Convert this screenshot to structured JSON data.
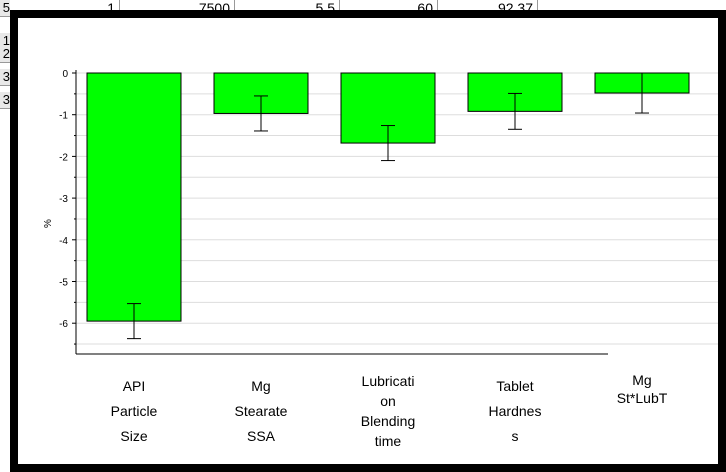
{
  "sheet": {
    "top_row": [
      "5",
      "1",
      "7500",
      "5.5",
      "60",
      "92.37"
    ],
    "row_headers": [
      "1",
      "2",
      "3",
      "3"
    ]
  },
  "chart_data": {
    "type": "bar",
    "categories": [
      "API Particle Size",
      "Mg Stearate SSA",
      "Lubrication Blending time",
      "Tablet Hardness",
      "Mg St*LubT"
    ],
    "category_lines": [
      [
        "API",
        "Particle",
        "Size"
      ],
      [
        "Mg",
        "Stearate",
        "SSA"
      ],
      [
        "Lubricati",
        "on",
        "Blending",
        "time"
      ],
      [
        "Tablet",
        "Hardnes",
        "s"
      ],
      [
        "Mg",
        "St*LubT"
      ]
    ],
    "values": [
      -5.95,
      -0.97,
      -1.68,
      -0.92,
      -0.48
    ],
    "errors": [
      0.42,
      0.42,
      0.42,
      0.43,
      0.48
    ],
    "ylabel": "%",
    "ylim": [
      -6.75,
      0
    ],
    "yticks": [
      0,
      -1,
      -2,
      -3,
      -4,
      -5,
      -6
    ],
    "ytick_labels": [
      "0",
      "-1",
      "-2",
      "-3",
      "-4",
      "-5",
      "-6"
    ],
    "bar_color": "#00ff00",
    "grid": true
  }
}
